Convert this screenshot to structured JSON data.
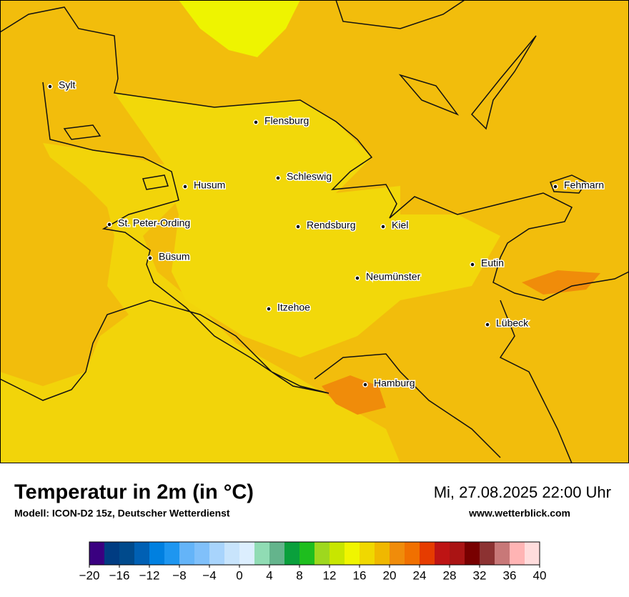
{
  "title": "Temperatur in 2m (in °C)",
  "subtitle": "Modell: ICON-D2 15z, Deutscher Wetterdienst",
  "datetime": "Mi, 27.08.2025 22:00 Uhr",
  "website": "www.wetterblick.com",
  "cities": [
    "Sylt",
    "Flensburg",
    "Schleswig",
    "Husum",
    "Fehmarn",
    "St. Peter-Ording",
    "Rendsburg",
    "Kiel",
    "Büsum",
    "Eutin",
    "Neumünster",
    "Itzehoe",
    "Lübeck",
    "Hamburg"
  ],
  "colorbar": {
    "lim": [
      -20,
      40
    ],
    "colors": [
      "#3a0080",
      "#003c82",
      "#004a8c",
      "#0060b4",
      "#0080e0",
      "#1e96f0",
      "#64b4f8",
      "#80c0fa",
      "#a8d4fc",
      "#c8e4fc",
      "#dceefe",
      "#90dcb4",
      "#64b48c",
      "#0aa03c",
      "#1ebe1e",
      "#9ed81e",
      "#c8e600",
      "#f0f500",
      "#f0d800",
      "#f0b800",
      "#f08c0a",
      "#f07000",
      "#e63c00",
      "#be1414",
      "#aa1414",
      "#780000",
      "#8c3232",
      "#c87878",
      "#ffb4b4",
      "#ffdcdc"
    ],
    "ticks": [
      {
        "value": -20,
        "label": "−20"
      },
      {
        "value": -16,
        "label": "−16"
      },
      {
        "value": -12,
        "label": "−12"
      },
      {
        "value": -8,
        "label": "−8"
      },
      {
        "value": -4,
        "label": "−4"
      },
      0,
      4,
      8,
      12,
      16,
      20,
      24,
      28,
      32,
      36,
      40
    ]
  }
}
